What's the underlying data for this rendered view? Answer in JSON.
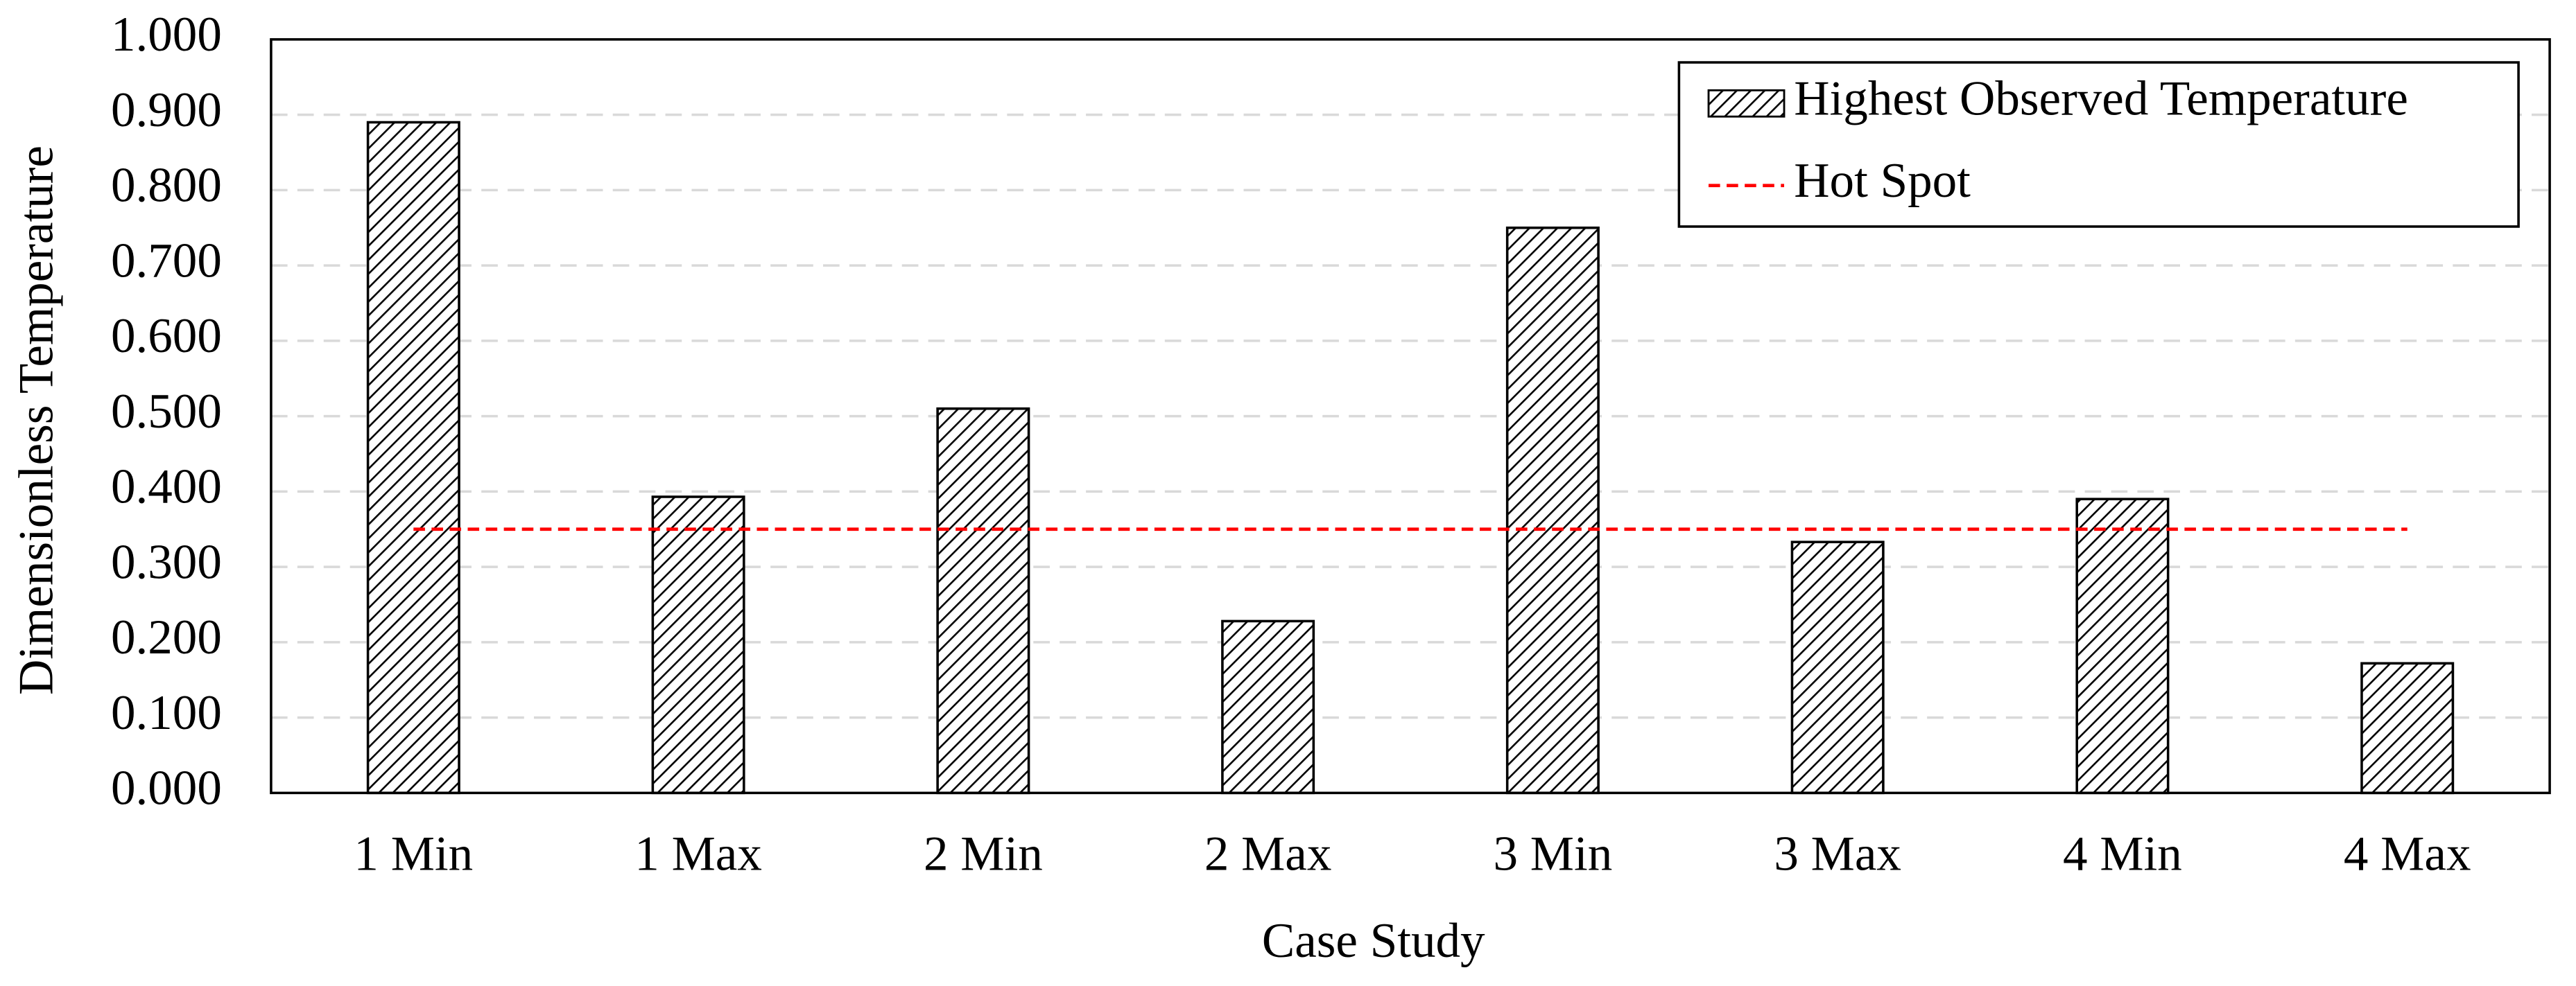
{
  "chart_data": {
    "type": "bar",
    "x_label": "Case Study",
    "y_label": "Dimensionless Temperature",
    "categories": [
      "1 Min",
      "1 Max",
      "2 Min",
      "2 Max",
      "3 Min",
      "3 Max",
      "4 Min",
      "4 Max"
    ],
    "series": [
      {
        "name": "Highest Observed Temperature",
        "type": "bar",
        "color": "#000000",
        "hatch": true,
        "values": [
          0.89,
          0.393,
          0.51,
          0.228,
          0.75,
          0.333,
          0.39,
          0.172
        ]
      },
      {
        "name": "Hot Spot",
        "type": "line",
        "color": "#ff0000",
        "dashed": true,
        "values": [
          0.35,
          0.35,
          0.35,
          0.35,
          0.35,
          0.35,
          0.35,
          0.35
        ]
      }
    ],
    "ylim": [
      0,
      1
    ],
    "yticks": [
      {
        "value": 0,
        "label": "0.000"
      },
      {
        "value": 0.1,
        "label": "0.100"
      },
      {
        "value": 0.2,
        "label": "0.200"
      },
      {
        "value": 0.3,
        "label": "0.300"
      },
      {
        "value": 0.4,
        "label": "0.400"
      },
      {
        "value": 0.5,
        "label": "0.500"
      },
      {
        "value": 0.6,
        "label": "0.600"
      },
      {
        "value": 0.7,
        "label": "0.700"
      },
      {
        "value": 0.8,
        "label": "0.800"
      },
      {
        "value": 0.9,
        "label": "0.900"
      },
      {
        "value": 1,
        "label": "1.000"
      }
    ],
    "grid": true,
    "legend": "upper right"
  }
}
